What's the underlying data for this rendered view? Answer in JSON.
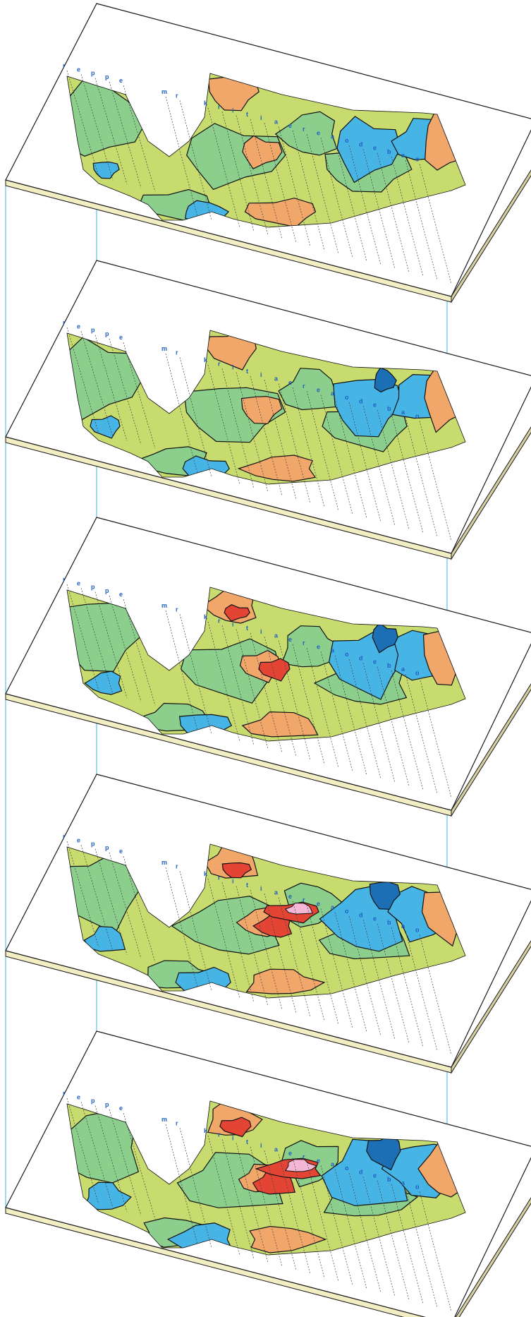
{
  "figure": {
    "description_visible_text": "",
    "slice_count": 5
  },
  "colors": {
    "outline": "#111111",
    "plane_edge": "#1a1a1a",
    "plane_side": "#f3edc4",
    "plane_bottom": "#d8cfa0",
    "connector": "#39b7e3",
    "profile_label": "#1f5fbf",
    "zones": {
      "very_low": "#1d6fb5",
      "low": "#47b4e6",
      "below_mid": "#8ccf8d",
      "mid": "#c7db6e",
      "above_mid": "#f2a76a",
      "high": "#e34434",
      "very_high": "#f4b8d6"
    }
  },
  "profiles": {
    "left_group": [
      "r",
      "e",
      "p",
      "p",
      "e"
    ],
    "middle_group": [
      "m",
      "r"
    ],
    "right_group": [
      "k",
      "r",
      "i",
      "t",
      "i",
      "a",
      "e",
      "r",
      "e",
      "a",
      "o",
      "d",
      "e",
      "b",
      "a",
      "o"
    ]
  },
  "slices": [
    {
      "index": 1,
      "anomaly_strength": 0
    },
    {
      "index": 2,
      "anomaly_strength": 1
    },
    {
      "index": 3,
      "anomaly_strength": 2
    },
    {
      "index": 4,
      "anomaly_strength": 3
    },
    {
      "index": 5,
      "anomaly_strength": 4
    }
  ]
}
